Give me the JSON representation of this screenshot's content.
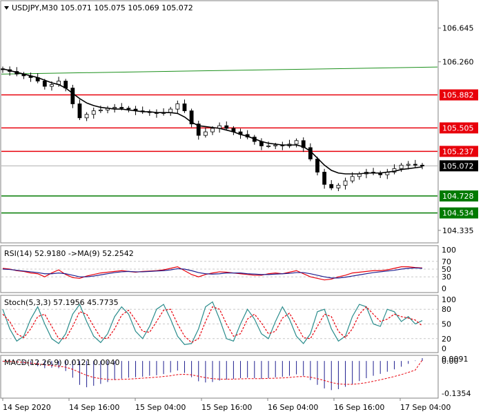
{
  "chart_data": [
    {
      "type": "candlestick",
      "title": "USDJPY,M30  105.071 105.075 105.069 105.072",
      "y_ticks": [
        "106.645",
        "106.260",
        "104.335"
      ],
      "ylim": [
        104.2,
        106.95
      ],
      "x_ticks": [
        "14 Sep 2020",
        "14 Sep 16:00",
        "15 Sep 04:00",
        "15 Sep 16:00",
        "16 Sep 04:00",
        "16 Sep 16:00",
        "17 Sep 04:00"
      ],
      "current_price": {
        "label": "105.072",
        "value": 105.072,
        "color": "#000000"
      },
      "resistance_levels": [
        {
          "label": "105.882",
          "value": 105.882,
          "color": "#e8000b"
        },
        {
          "label": "105.505",
          "value": 105.505,
          "color": "#e8000b"
        },
        {
          "label": "105.237",
          "value": 105.237,
          "color": "#e8000b"
        }
      ],
      "support_levels": [
        {
          "label": "104.728",
          "value": 104.728,
          "color": "#007a00"
        },
        {
          "label": "104.534",
          "value": 104.534,
          "color": "#007a00"
        }
      ],
      "trendline": {
        "from": 106.12,
        "to": 106.2,
        "color": "#1a8f1a"
      },
      "close_path": [
        106.17,
        106.15,
        106.12,
        106.1,
        106.08,
        106.04,
        105.98,
        106.0,
        106.04,
        105.96,
        105.78,
        105.62,
        105.66,
        105.7,
        105.71,
        105.73,
        105.74,
        105.73,
        105.72,
        105.7,
        105.69,
        105.68,
        105.67,
        105.68,
        105.72,
        105.78,
        105.7,
        105.55,
        105.42,
        105.46,
        105.5,
        105.53,
        105.5,
        105.46,
        105.43,
        105.4,
        105.35,
        105.3,
        105.3,
        105.31,
        105.3,
        105.32,
        105.36,
        105.28,
        105.15,
        105.0,
        104.86,
        104.82,
        104.85,
        104.9,
        104.95,
        104.98,
        105.0,
        104.99,
        104.97,
        105.0,
        105.04,
        105.08,
        105.09,
        105.08,
        105.07
      ],
      "moving_average": [
        106.18,
        106.16,
        106.14,
        106.12,
        106.1,
        106.08,
        106.05,
        106.02,
        106.0,
        105.96,
        105.9,
        105.84,
        105.79,
        105.76,
        105.74,
        105.73,
        105.72,
        105.72,
        105.71,
        105.7,
        105.69,
        105.69,
        105.68,
        105.68,
        105.68,
        105.67,
        105.63,
        105.57,
        105.53,
        105.52,
        105.51,
        105.5,
        105.48,
        105.46,
        105.43,
        105.41,
        105.38,
        105.35,
        105.33,
        105.32,
        105.31,
        105.31,
        105.31,
        105.29,
        105.24,
        105.16,
        105.08,
        105.02,
        104.99,
        104.98,
        104.98,
        104.98,
        104.99,
        104.99,
        104.99,
        105.0,
        105.01,
        105.03,
        105.04,
        105.05,
        105.06
      ]
    },
    {
      "type": "line",
      "title": "RSI(14) 52.9180  ->MA(9) 52.2542",
      "y_ticks": [
        "100",
        "70",
        "50",
        "30",
        "0"
      ],
      "ylim": [
        0,
        100
      ],
      "series": [
        {
          "color": "#e8000b",
          "values": [
            52,
            50,
            46,
            44,
            40,
            38,
            30,
            40,
            48,
            36,
            28,
            26,
            32,
            36,
            40,
            42,
            44,
            46,
            44,
            42,
            44,
            45,
            46,
            48,
            52,
            56,
            46,
            36,
            30,
            36,
            40,
            43,
            42,
            40,
            38,
            36,
            34,
            34,
            38,
            40,
            38,
            42,
            46,
            38,
            30,
            26,
            22,
            24,
            30,
            34,
            40,
            42,
            44,
            46,
            46,
            48,
            52,
            56,
            56,
            54,
            53
          ]
        },
        {
          "color": "#1d1d8f",
          "values": [
            50,
            49,
            47,
            45,
            43,
            41,
            38,
            38,
            40,
            38,
            34,
            30,
            30,
            32,
            35,
            38,
            41,
            43,
            44,
            43,
            43,
            44,
            45,
            46,
            48,
            51,
            50,
            46,
            41,
            38,
            37,
            38,
            40,
            40,
            40,
            38,
            37,
            36,
            36,
            37,
            38,
            39,
            41,
            41,
            38,
            34,
            30,
            27,
            27,
            29,
            32,
            35,
            38,
            41,
            43,
            45,
            47,
            50,
            52,
            53,
            52
          ]
        }
      ]
    },
    {
      "type": "line",
      "title": "Stoch(5,3,3) 57.1956 45.7735",
      "y_ticks": [
        "100",
        "80",
        "50",
        "20",
        "0"
      ],
      "ylim": [
        0,
        100
      ],
      "series": [
        {
          "color": "#2a8c8c",
          "values": [
            80,
            40,
            15,
            25,
            60,
            85,
            50,
            20,
            10,
            30,
            70,
            90,
            55,
            25,
            12,
            30,
            65,
            85,
            70,
            35,
            20,
            45,
            80,
            90,
            60,
            25,
            8,
            10,
            40,
            85,
            95,
            60,
            20,
            15,
            50,
            80,
            60,
            30,
            20,
            55,
            85,
            60,
            25,
            10,
            30,
            75,
            80,
            40,
            15,
            25,
            65,
            90,
            85,
            50,
            45,
            80,
            75,
            55,
            65,
            50,
            57
          ]
        },
        {
          "color": "#e8000b",
          "values": [
            70,
            55,
            30,
            22,
            40,
            65,
            70,
            45,
            20,
            20,
            45,
            75,
            70,
            45,
            22,
            20,
            40,
            68,
            78,
            58,
            35,
            33,
            55,
            78,
            80,
            50,
            25,
            12,
            20,
            55,
            85,
            80,
            50,
            25,
            30,
            60,
            70,
            52,
            30,
            35,
            62,
            72,
            48,
            22,
            20,
            45,
            70,
            65,
            35,
            22,
            40,
            70,
            85,
            70,
            55,
            60,
            70,
            65,
            62,
            58,
            46
          ]
        }
      ]
    },
    {
      "type": "bar",
      "title": "MACD(12,26,9) 0.0121 0.0040",
      "y_ticks": [
        "0.0091",
        "0.00",
        "-0.1354"
      ],
      "ylim": [
        -0.1354,
        0.0091
      ],
      "series": [
        {
          "color": "#1d1d8f",
          "values": [
            -0.002,
            -0.004,
            -0.008,
            -0.012,
            -0.016,
            -0.022,
            -0.03,
            -0.028,
            -0.03,
            -0.042,
            -0.07,
            -0.1,
            -0.11,
            -0.104,
            -0.096,
            -0.088,
            -0.08,
            -0.074,
            -0.07,
            -0.068,
            -0.066,
            -0.062,
            -0.06,
            -0.055,
            -0.048,
            -0.04,
            -0.05,
            -0.068,
            -0.085,
            -0.09,
            -0.088,
            -0.082,
            -0.078,
            -0.075,
            -0.072,
            -0.07,
            -0.072,
            -0.075,
            -0.072,
            -0.068,
            -0.066,
            -0.062,
            -0.056,
            -0.062,
            -0.08,
            -0.1,
            -0.115,
            -0.122,
            -0.118,
            -0.108,
            -0.096,
            -0.084,
            -0.072,
            -0.062,
            -0.054,
            -0.045,
            -0.035,
            -0.024,
            -0.012,
            0.002,
            0.0121
          ]
        },
        {
          "color": "#e8000b",
          "values": [
            -0.001,
            -0.002,
            -0.004,
            -0.006,
            -0.009,
            -0.012,
            -0.016,
            -0.019,
            -0.022,
            -0.026,
            -0.035,
            -0.048,
            -0.06,
            -0.069,
            -0.074,
            -0.077,
            -0.078,
            -0.077,
            -0.076,
            -0.074,
            -0.072,
            -0.07,
            -0.068,
            -0.065,
            -0.062,
            -0.057,
            -0.056,
            -0.058,
            -0.064,
            -0.07,
            -0.074,
            -0.076,
            -0.076,
            -0.076,
            -0.075,
            -0.074,
            -0.074,
            -0.074,
            -0.073,
            -0.072,
            -0.071,
            -0.069,
            -0.066,
            -0.065,
            -0.068,
            -0.074,
            -0.082,
            -0.09,
            -0.096,
            -0.098,
            -0.098,
            -0.095,
            -0.091,
            -0.085,
            -0.079,
            -0.072,
            -0.065,
            -0.057,
            -0.048,
            -0.038,
            0.004
          ]
        }
      ]
    }
  ]
}
